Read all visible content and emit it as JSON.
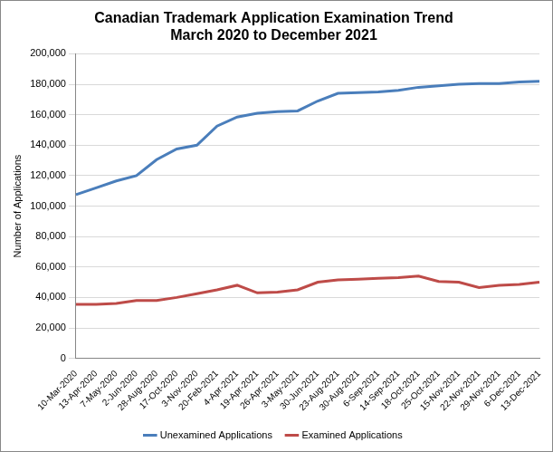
{
  "chart_data": {
    "type": "line",
    "title": [
      "Canadian Trademark Application Examination Trend",
      "March 2020 to December 2021"
    ],
    "y_label": "Number of Applications",
    "categories": [
      "10-Mar-2020",
      "13-Apr-2020",
      "7-May-2020",
      "2-Jun-2020",
      "28-Aug-2020",
      "17-Oct-2020",
      "3-Nov-2020",
      "20-Feb-2021",
      "4-Apr-2021",
      "19-Apr-2021",
      "26-Apr-2021",
      "3-May-2021",
      "30-Jun-2021",
      "23-Aug-2021",
      "30-Aug-2021",
      "6-Sep-2021",
      "14-Sep-2021",
      "18-Oct-2021",
      "25-Oct-2021",
      "15-Nov-2021",
      "22-Nov-2021",
      "29-Nov-2021",
      "6-Dec-2021",
      "13-Dec-2021"
    ],
    "series": [
      {
        "name": "Unexamined Applications",
        "color": "#4a7ebb",
        "values": [
          107500,
          112000,
          116500,
          120000,
          130500,
          137500,
          140000,
          152500,
          158500,
          161000,
          162000,
          162500,
          169000,
          174000,
          174500,
          175000,
          176000,
          178000,
          179000,
          180000,
          180500,
          180500,
          181500,
          182000
        ]
      },
      {
        "name": "Examined Applications",
        "color": "#be4b48",
        "values": [
          35500,
          35500,
          36000,
          38000,
          38000,
          40000,
          42500,
          45000,
          48000,
          43000,
          43500,
          45000,
          50000,
          51500,
          52000,
          52500,
          53000,
          54000,
          50500,
          50000,
          46500,
          48000,
          48500,
          50000
        ]
      }
    ],
    "ylim": [
      0,
      200000
    ],
    "yticks": [
      0,
      {
        "value": 20000,
        "label": "20,000"
      },
      {
        "value": 40000,
        "label": "40,000"
      },
      {
        "value": 60000,
        "label": "60,000"
      },
      {
        "value": 80000,
        "label": "80,000"
      },
      {
        "value": 100000,
        "label": "100,000"
      },
      {
        "value": 120000,
        "label": "120,000"
      },
      {
        "value": 140000,
        "label": "140,000"
      },
      {
        "value": 160000,
        "label": "160,000"
      },
      {
        "value": 180000,
        "label": "180,000"
      },
      {
        "value": 200000,
        "label": "200,000"
      }
    ],
    "grid": "y",
    "legend": "bottom"
  }
}
